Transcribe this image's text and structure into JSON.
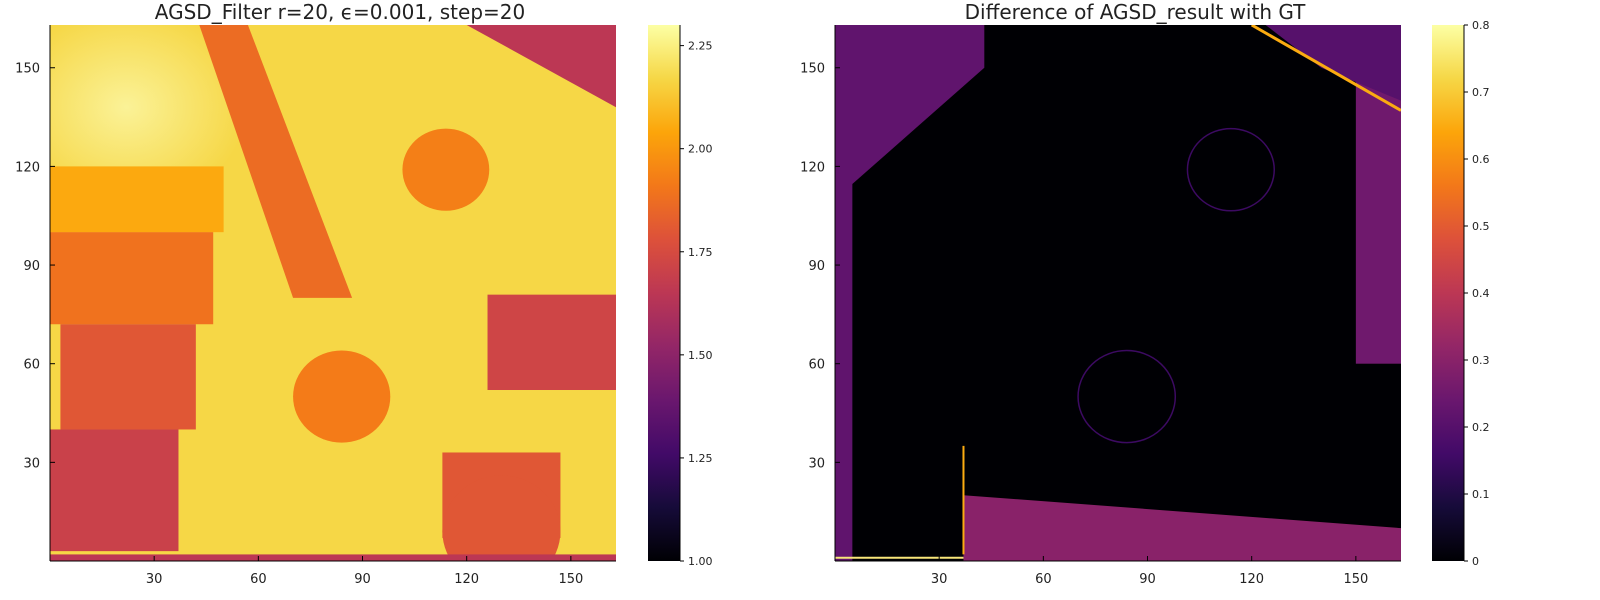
{
  "chart_data": [
    {
      "type": "heatmap",
      "title": "AGSD_Filter  r=20, ϵ=0.001, step=20",
      "xlim": [
        0,
        163
      ],
      "ylim": [
        0,
        163
      ],
      "x_ticks": [
        "30",
        "60",
        "90",
        "120",
        "150"
      ],
      "y_ticks": [
        "30",
        "60",
        "90",
        "120",
        "150"
      ],
      "colorbar": {
        "min": 1.0,
        "max": 2.3,
        "ticks": [
          "1.00",
          "1.25",
          "1.50",
          "1.75",
          "2.00",
          "2.25"
        ]
      },
      "colormap": "inferno",
      "regions": [
        {
          "name": "background",
          "value": 2.17
        },
        {
          "name": "top-left-bright",
          "value": 2.25
        },
        {
          "name": "upper-left-block",
          "value": 2.05
        },
        {
          "name": "diagonal-bar",
          "value": 1.87
        },
        {
          "name": "mid-left-box",
          "value": 1.89
        },
        {
          "name": "lower-left-box",
          "value": 1.8
        },
        {
          "name": "bottom-left-box",
          "value": 1.7
        },
        {
          "name": "top-right-wedge",
          "value": 1.65
        },
        {
          "name": "right-box",
          "value": 1.72
        },
        {
          "name": "upper-circle",
          "value": 1.93
        },
        {
          "name": "lower-circle",
          "value": 1.92
        },
        {
          "name": "bottom-right-box",
          "value": 1.8
        }
      ]
    },
    {
      "type": "heatmap",
      "title": "Difference of AGSD_result with GT",
      "xlim": [
        0,
        163
      ],
      "ylim": [
        0,
        163
      ],
      "x_ticks": [
        "30",
        "60",
        "90",
        "120",
        "150"
      ],
      "y_ticks": [
        "30",
        "60",
        "90",
        "120",
        "150"
      ],
      "colorbar": {
        "min": 0,
        "max": 0.8,
        "ticks": [
          "0",
          "0.1",
          "0.2",
          "0.3",
          "0.4",
          "0.5",
          "0.6",
          "0.7",
          "0.8"
        ]
      },
      "colormap": "inferno",
      "regions": [
        {
          "name": "background",
          "value": 0.0
        },
        {
          "name": "left-edge-band",
          "value": 0.22
        },
        {
          "name": "top-edge-band",
          "value": 0.2
        },
        {
          "name": "right-edge-band",
          "value": 0.25
        },
        {
          "name": "bottom-edge-band",
          "value": 0.3
        },
        {
          "name": "diagonal-edge-line",
          "value": 0.65
        },
        {
          "name": "circle-outlines",
          "value": 0.15
        }
      ]
    }
  ]
}
